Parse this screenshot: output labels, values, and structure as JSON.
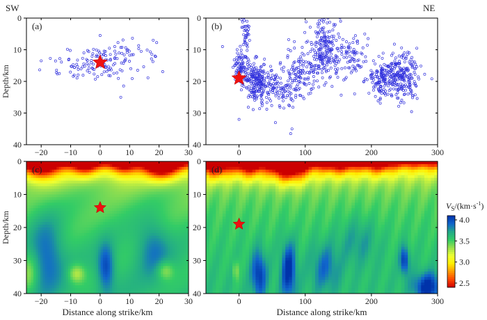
{
  "labels": {
    "sw": "SW",
    "ne": "NE"
  },
  "colorbar": {
    "title_main": "V",
    "title_sub": "S",
    "title_unit": "/(km·s",
    "title_sup": "-1",
    "title_close": ")",
    "ticks": [
      "4.0",
      "3.5",
      "3.0",
      "2.5"
    ],
    "range": [
      2.4,
      4.1
    ],
    "colors": [
      "#cc0000",
      "#ff4400",
      "#ff9900",
      "#ffee00",
      "#eeff33",
      "#99e04d",
      "#33cc66",
      "#22aa88",
      "#1166cc",
      "#0033aa"
    ]
  },
  "chart_data": [
    {
      "panel": "(a)",
      "type": "scatter",
      "xlim": [
        -25,
        30
      ],
      "ylim": [
        40,
        0
      ],
      "xticks": [
        "-20",
        "-10",
        "0",
        "10",
        "20",
        "30"
      ],
      "yticks": [
        "0",
        "10",
        "20",
        "30",
        "40"
      ],
      "xlabel": "",
      "ylabel": "Depth/km",
      "mainshock": {
        "x": 0,
        "depth": 14
      },
      "clusters": [
        {
          "cx": 0,
          "cy": 14,
          "sx": 8,
          "sy": 2.5,
          "n": 130
        },
        {
          "cx": 12,
          "cy": 10.5,
          "sx": 5,
          "sy": 2,
          "n": 20
        }
      ],
      "extra_points": [
        [
          0,
          5.5
        ],
        [
          7,
          25
        ],
        [
          18,
          7
        ],
        [
          -20,
          13.5
        ]
      ]
    },
    {
      "panel": "(b)",
      "type": "scatter",
      "xlim": [
        -50,
        300
      ],
      "ylim": [
        40,
        0
      ],
      "xticks": [
        "0",
        "100",
        "200",
        "300"
      ],
      "yticks": [
        "0",
        "10",
        "20",
        "30",
        "40"
      ],
      "xlabel": "",
      "ylabel": "",
      "mainshock": {
        "x": 0,
        "depth": 19
      },
      "clusters": [
        {
          "cx": 3,
          "cy": 16,
          "sx": 6,
          "sy": 3,
          "n": 90
        },
        {
          "cx": 10,
          "cy": 4,
          "sx": 3,
          "sy": 3,
          "n": 40
        },
        {
          "cx": 25,
          "cy": 20,
          "sx": 9,
          "sy": 3,
          "n": 180
        },
        {
          "cx": 55,
          "cy": 22,
          "sx": 14,
          "sy": 3,
          "n": 100
        },
        {
          "cx": 90,
          "cy": 17,
          "sx": 15,
          "sy": 4,
          "n": 130
        },
        {
          "cx": 130,
          "cy": 10,
          "sx": 12,
          "sy": 5,
          "n": 200
        },
        {
          "cx": 170,
          "cy": 13,
          "sx": 14,
          "sy": 4,
          "n": 90
        },
        {
          "cx": 215,
          "cy": 19,
          "sx": 9,
          "sy": 3,
          "n": 110
        },
        {
          "cx": 245,
          "cy": 18,
          "sx": 13,
          "sy": 3.5,
          "n": 230
        }
      ],
      "extra_points": [
        [
          -25,
          9
        ],
        [
          80,
          35
        ],
        [
          78,
          36.5
        ],
        [
          0,
          32
        ],
        [
          55,
          33
        ],
        [
          190,
          5
        ]
      ]
    },
    {
      "panel": "(c)",
      "type": "heatmap",
      "xlim": [
        -25,
        30
      ],
      "ylim": [
        40,
        0
      ],
      "xticks": [
        "-20",
        "-10",
        "0",
        "10",
        "20",
        "30"
      ],
      "yticks": [
        "0",
        "10",
        "20",
        "30",
        "40"
      ],
      "xlabel": "Distance along strike/km",
      "ylabel": "Depth/km",
      "mainshock": {
        "x": 0,
        "depth": 14
      },
      "vs_anomalies": [
        {
          "x": -20,
          "depth": 1,
          "dv": -0.9,
          "sx": 4,
          "sy": 3
        },
        {
          "x": -5,
          "depth": 1,
          "dv": -0.55,
          "sx": 3,
          "sy": 2.5
        },
        {
          "x": 8,
          "depth": 1,
          "dv": -0.5,
          "sx": 3,
          "sy": 2.5
        },
        {
          "x": 21,
          "depth": 1,
          "dv": -1.0,
          "sx": 4,
          "sy": 3
        },
        {
          "x": -18,
          "depth": 28,
          "dv": 0.35,
          "sx": 4,
          "sy": 8
        },
        {
          "x": 2,
          "depth": 32,
          "dv": 0.45,
          "sx": 2,
          "sy": 5
        },
        {
          "x": 18,
          "depth": 26,
          "dv": 0.3,
          "sx": 4,
          "sy": 6
        },
        {
          "x": 22,
          "depth": 33,
          "dv": -0.3,
          "sx": 2,
          "sy": 2
        },
        {
          "x": -8,
          "depth": 34,
          "dv": -0.35,
          "sx": 2,
          "sy": 2
        },
        {
          "x": -24,
          "depth": 34,
          "dv": -0.25,
          "sx": 2,
          "sy": 4
        }
      ]
    },
    {
      "panel": "(d)",
      "type": "heatmap",
      "xlim": [
        -50,
        300
      ],
      "ylim": [
        40,
        0
      ],
      "xticks": [
        "0",
        "100",
        "200",
        "300"
      ],
      "yticks": [
        "0",
        "10",
        "20",
        "30",
        "40"
      ],
      "xlabel": "Distance along strike/km",
      "ylabel": "",
      "mainshock": {
        "x": 0,
        "depth": 19
      },
      "vs_anomalies": [
        {
          "x": -35,
          "depth": 1,
          "dv": -0.7,
          "sx": 15,
          "sy": 3
        },
        {
          "x": 15,
          "depth": 1,
          "dv": -0.6,
          "sx": 15,
          "sy": 3
        },
        {
          "x": 75,
          "depth": 1,
          "dv": -1.1,
          "sx": 20,
          "sy": 3.5
        },
        {
          "x": 150,
          "depth": 1,
          "dv": -0.4,
          "sx": 20,
          "sy": 2.5
        },
        {
          "x": 210,
          "depth": 1,
          "dv": -0.35,
          "sx": 15,
          "sy": 2.5
        },
        {
          "x": 30,
          "depth": 34,
          "dv": 0.5,
          "sx": 8,
          "sy": 5
        },
        {
          "x": 75,
          "depth": 33,
          "dv": 0.55,
          "sx": 8,
          "sy": 6
        },
        {
          "x": 130,
          "depth": 32,
          "dv": 0.3,
          "sx": 15,
          "sy": 5
        },
        {
          "x": 250,
          "depth": 30,
          "dv": 0.5,
          "sx": 5,
          "sy": 3
        },
        {
          "x": 285,
          "depth": 38,
          "dv": 0.55,
          "sx": 15,
          "sy": 3
        },
        {
          "x": -5,
          "depth": 33,
          "dv": -0.25,
          "sx": 3,
          "sy": 2
        },
        {
          "x": 180,
          "depth": 24,
          "dv": 0.2,
          "sx": 20,
          "sy": 5
        }
      ]
    }
  ]
}
